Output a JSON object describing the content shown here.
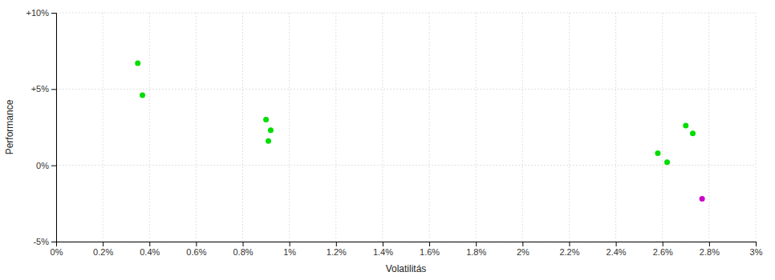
{
  "chart_data": {
    "type": "scatter",
    "x_label": "Volatilitás",
    "y_label": "Performance",
    "xlim": [
      0,
      0.03
    ],
    "ylim": [
      -0.05,
      0.1
    ],
    "xticks": [
      {
        "value": 0,
        "label": "0%"
      },
      {
        "value": 0.002,
        "label": "0.2%"
      },
      {
        "value": 0.004,
        "label": "0.4%"
      },
      {
        "value": 0.006,
        "label": "0.6%"
      },
      {
        "value": 0.008,
        "label": "0.8%"
      },
      {
        "value": 0.01,
        "label": "1%"
      },
      {
        "value": 0.012,
        "label": "1.2%"
      },
      {
        "value": 0.014,
        "label": "1.4%"
      },
      {
        "value": 0.016,
        "label": "1.6%"
      },
      {
        "value": 0.018,
        "label": "1.8%"
      },
      {
        "value": 0.02,
        "label": "2%"
      },
      {
        "value": 0.022,
        "label": "2.2%"
      },
      {
        "value": 0.024,
        "label": "2.4%"
      },
      {
        "value": 0.026,
        "label": "2.6%"
      },
      {
        "value": 0.028,
        "label": "2.8%"
      },
      {
        "value": 0.03,
        "label": "3%"
      }
    ],
    "yticks": [
      {
        "value": -0.05,
        "label": "-5%"
      },
      {
        "value": 0.0,
        "label": "0%"
      },
      {
        "value": 0.05,
        "label": "+5%"
      },
      {
        "value": 0.1,
        "label": "+10%"
      }
    ],
    "grid": true,
    "series": [
      {
        "color": "#00dd00",
        "x": [
          0.0035,
          0.0037,
          0.009,
          0.0092,
          0.0091,
          0.027,
          0.0273,
          0.0258,
          0.0262
        ],
        "values": [
          0.067,
          0.046,
          0.03,
          0.023,
          0.016,
          0.026,
          0.021,
          0.008,
          0.002
        ]
      },
      {
        "color": "#cc00cc",
        "x": [
          0.0277
        ],
        "values": [
          -0.022
        ]
      }
    ]
  }
}
